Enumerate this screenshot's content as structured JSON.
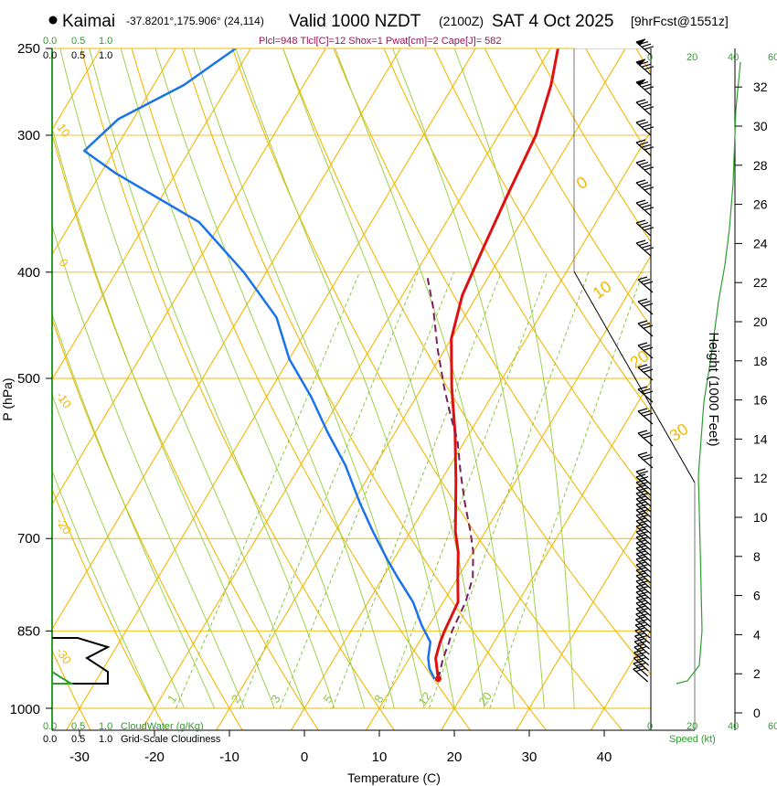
{
  "header": {
    "location": "Kaimai",
    "coords": "-37.8201°,175.906° (24,114)",
    "valid_label": "Valid 1000 NZDT",
    "zulu": "(2100Z)",
    "date": "SAT 4 Oct 2025",
    "forecast": "[9hrFcst@1551z]",
    "params": "Plcl=948 Tlcl[C]=12 Shox=1 Pwat[cm]=2 Cape[J]= 582"
  },
  "colors": {
    "isotherm": "#f2b800",
    "dry_adiabat": "#f2b800",
    "moist_adiabat": "#9fd24a",
    "mixing_ratio": "#8cc63f",
    "temperature": "#e01010",
    "dewpoint": "#1a73e8",
    "parcel": "#7a1f5c",
    "green_text": "#2ca02c",
    "cloud_profile": "#000000"
  },
  "chart_data": {
    "type": "line",
    "title": "",
    "xlabel": "Temperature (C)",
    "ylabel": "P (hPa)",
    "right_axis_label": "Height (1000 Feet)",
    "xlim": [
      -35,
      50
    ],
    "pressure_range": [
      1000,
      250
    ],
    "temperature_ticks": [
      -30,
      -20,
      -10,
      0,
      10,
      20,
      30,
      40
    ],
    "pressure_ticks": [
      250,
      300,
      400,
      500,
      700,
      850,
      1000
    ],
    "height_ticks": [
      0,
      2,
      4,
      6,
      8,
      10,
      12,
      14,
      16,
      18,
      20,
      22,
      24,
      26,
      28,
      30,
      32
    ],
    "isotherm_labels": [
      "10",
      "0",
      "-10",
      "-20",
      "-30"
    ],
    "dry_adiabat_labels": [
      "0",
      "10",
      "20",
      "30"
    ],
    "mixing_ratio_labels": [
      "1",
      "2",
      "3",
      "5",
      "8",
      "12",
      "20"
    ],
    "cloud_water_label": "CloudWater (g/Kg)",
    "cloudiness_label": "Grid-Scale Cloudiness",
    "cloud_scale": [
      "0.0",
      "0.5",
      "1.0"
    ],
    "cloud_scale_green": [
      "0.0",
      "0.5",
      "1.0"
    ],
    "speed_label": "Speed (kt)",
    "speed_ticks": [
      "0",
      "20",
      "40",
      "60"
    ],
    "series": [
      {
        "name": "",
        "points": [
          [
            15.5,
            940
          ],
          [
            14.5,
            920
          ],
          [
            13.5,
            900
          ],
          [
            12.8,
            870
          ],
          [
            12.5,
            850
          ],
          [
            12,
            800
          ],
          [
            10,
            760
          ],
          [
            8,
            720
          ],
          [
            6,
            690
          ],
          [
            2,
            620
          ],
          [
            -2,
            560
          ],
          [
            -6,
            510
          ],
          [
            -10,
            460
          ],
          [
            -12,
            420
          ],
          [
            -13,
            380
          ],
          [
            -14,
            340
          ],
          [
            -15,
            300
          ],
          [
            -17,
            270
          ],
          [
            -19,
            250
          ]
        ]
      },
      {
        "name": "",
        "points": [
          [
            15,
            940
          ],
          [
            13.5,
            920
          ],
          [
            12.5,
            900
          ],
          [
            11.5,
            870
          ],
          [
            9,
            840
          ],
          [
            6,
            800
          ],
          [
            2,
            760
          ],
          [
            -1,
            730
          ],
          [
            -5,
            690
          ],
          [
            -9,
            650
          ],
          [
            -14,
            600
          ],
          [
            -19,
            560
          ],
          [
            -24,
            520
          ],
          [
            -30,
            480
          ],
          [
            -35,
            440
          ],
          [
            -43,
            400
          ],
          [
            -53,
            360
          ],
          [
            -68,
            325
          ],
          [
            -74,
            310
          ],
          [
            -72,
            290
          ],
          [
            -66,
            270
          ],
          [
            -62,
            250
          ]
        ]
      },
      {
        "name": "",
        "points": [
          [
            15.5,
            940
          ],
          [
            14.5,
            900
          ],
          [
            14,
            870
          ],
          [
            13.5,
            850
          ],
          [
            13,
            800
          ],
          [
            12,
            760
          ],
          [
            10,
            720
          ],
          [
            8,
            690
          ],
          [
            5,
            650
          ],
          [
            2,
            610
          ],
          [
            -1,
            570
          ],
          [
            -4,
            540
          ],
          [
            -7,
            510
          ],
          [
            -11,
            470
          ],
          [
            -15,
            430
          ],
          [
            -18,
            405
          ]
        ]
      }
    ]
  }
}
